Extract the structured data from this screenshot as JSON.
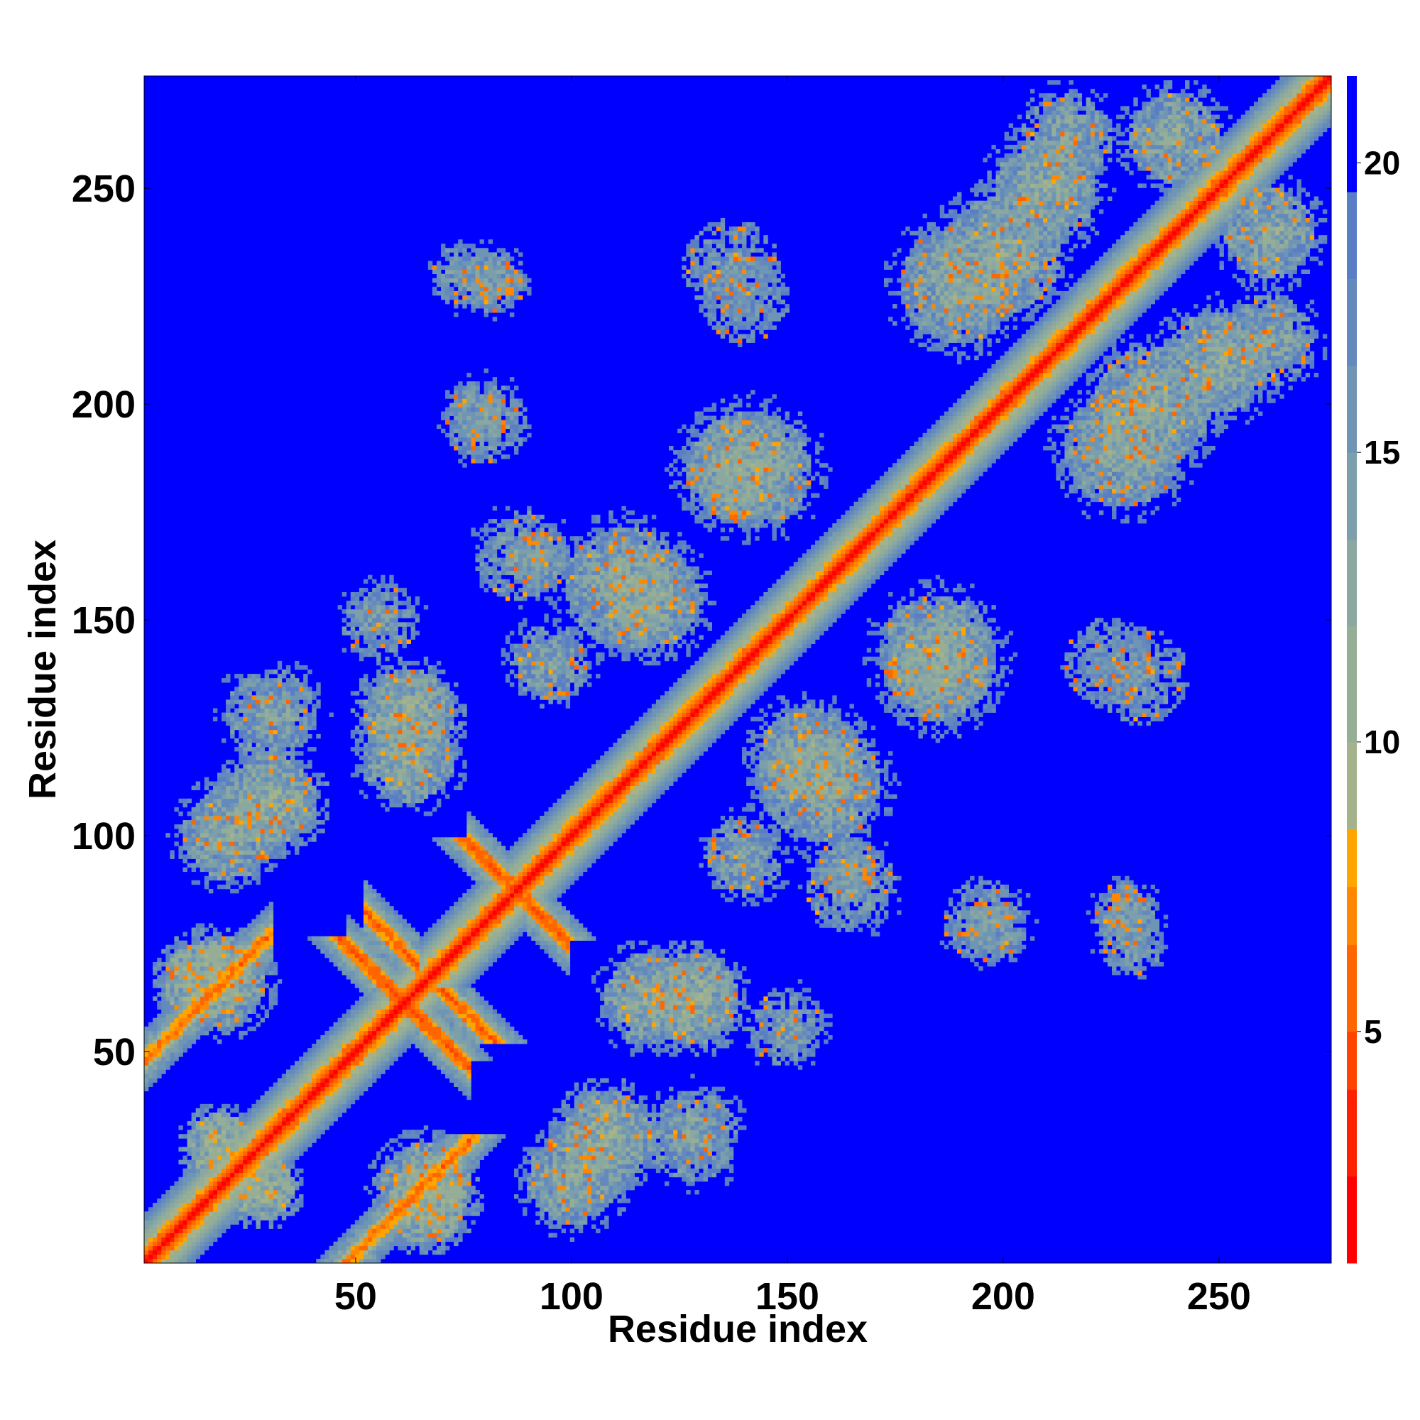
{
  "chart_data": {
    "type": "heatmap",
    "title": "",
    "xlabel": "Residue index",
    "ylabel": "Residue index",
    "n_residues": 276,
    "xlim": [
      1,
      276
    ],
    "ylim": [
      1,
      276
    ],
    "xticks": [
      50,
      100,
      150,
      200,
      250
    ],
    "yticks": [
      50,
      100,
      150,
      200,
      250
    ],
    "grid": false,
    "colorbar": {
      "ticks": [
        5,
        10,
        15,
        20
      ],
      "range": [
        1,
        21.5
      ],
      "colors": [
        "#ff0000",
        "#ff2000",
        "#ff4400",
        "#ff6600",
        "#ff8800",
        "#ffa500",
        "#a4b38c",
        "#96ae96",
        "#8aa8a0",
        "#7c9fab",
        "#6f95b5",
        "#6489bd",
        "#5a7ec4",
        "#0000ff"
      ],
      "thresholds": [
        2.5,
        4,
        5,
        6.5,
        7.5,
        8.5,
        10,
        12,
        13.5,
        15,
        16.5,
        18,
        19.5
      ]
    },
    "description_structure": {
      "diagonal_band": true,
      "distance_encoding": "Pairwise residue distance (matrix symmetric, low values red, high values blue)"
    },
    "contact_features": [
      {
        "kind": "parallel",
        "x": [
          1,
          30
        ],
        "y": [
          48,
          78
        ],
        "width": 3,
        "value": 6
      },
      {
        "kind": "antiparallel",
        "sum": 122,
        "from": 48,
        "to": 76,
        "width": 2.5,
        "value": 5.5
      },
      {
        "kind": "antiparallel",
        "sum": 174,
        "from": 76,
        "to": 99,
        "width": 2.5,
        "value": 5.5
      },
      {
        "kind": "antiparallel",
        "sum": 134,
        "from": 52,
        "to": 64,
        "width": 2.5,
        "value": 5.5
      },
      {
        "kind": "region",
        "cx": 30,
        "cy": 108,
        "r": 14,
        "value": 11
      },
      {
        "kind": "region",
        "cx": 62,
        "cy": 128,
        "r": 14,
        "value": 11
      },
      {
        "kind": "region",
        "cx": 14,
        "cy": 66,
        "r": 12,
        "value": 10
      },
      {
        "kind": "region",
        "cx": 75,
        "cy": 230,
        "r": 10,
        "value": 14
      },
      {
        "kind": "region",
        "cx": 78,
        "cy": 198,
        "r": 10,
        "value": 14
      },
      {
        "kind": "region",
        "cx": 93,
        "cy": 164,
        "r": 9,
        "value": 14
      },
      {
        "kind": "region",
        "cx": 137,
        "cy": 232,
        "r": 15,
        "value": 15
      },
      {
        "kind": "region",
        "cx": 142,
        "cy": 185,
        "r": 18,
        "value": 12
      },
      {
        "kind": "region",
        "cx": 112,
        "cy": 158,
        "r": 18,
        "value": 12
      },
      {
        "kind": "region",
        "cx": 155,
        "cy": 118,
        "r": 16,
        "value": 12
      },
      {
        "kind": "region",
        "cx": 185,
        "cy": 138,
        "r": 16,
        "value": 12
      },
      {
        "kind": "region",
        "cx": 165,
        "cy": 88,
        "r": 14,
        "value": 14
      },
      {
        "kind": "region",
        "cx": 196,
        "cy": 80,
        "r": 13,
        "value": 14
      },
      {
        "kind": "region",
        "cx": 229,
        "cy": 82,
        "r": 10,
        "value": 14
      },
      {
        "kind": "region",
        "cx": 225,
        "cy": 140,
        "r": 14,
        "value": 15
      },
      {
        "kind": "region",
        "cx": 200,
        "cy": 235,
        "r": 18,
        "value": 12
      },
      {
        "kind": "region",
        "cx": 228,
        "cy": 190,
        "r": 18,
        "value": 12
      },
      {
        "kind": "region",
        "cx": 250,
        "cy": 210,
        "r": 16,
        "value": 12
      },
      {
        "kind": "region",
        "cx": 215,
        "cy": 262,
        "r": 14,
        "value": 13
      },
      {
        "kind": "region",
        "cx": 262,
        "cy": 240,
        "r": 14,
        "value": 12
      },
      {
        "kind": "region",
        "cx": 100,
        "cy": 20,
        "r": 14,
        "value": 12
      },
      {
        "kind": "region",
        "cx": 128,
        "cy": 30,
        "r": 14,
        "value": 13
      },
      {
        "kind": "region",
        "cx": 118,
        "cy": 62,
        "r": 14,
        "value": 12
      },
      {
        "kind": "region",
        "cx": 150,
        "cy": 55,
        "r": 12,
        "value": 14
      },
      {
        "kind": "region",
        "cx": 140,
        "cy": 95,
        "r": 12,
        "value": 13
      },
      {
        "kind": "region",
        "cx": 66,
        "cy": 18,
        "r": 14,
        "value": 11
      },
      {
        "kind": "region",
        "cx": 18,
        "cy": 28,
        "r": 10,
        "value": 10
      }
    ]
  }
}
